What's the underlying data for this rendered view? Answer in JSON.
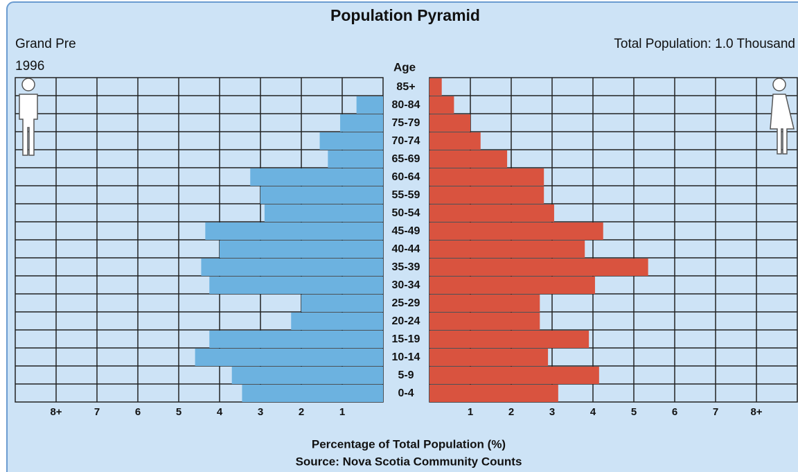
{
  "chart_data": {
    "type": "pyramid",
    "title": "Population Pyramid",
    "place": "Grand Pre",
    "year": "1996",
    "total": "Total Population: 1.0 Thousand",
    "category_label": "Age",
    "x_label": "Percentage of Total Population (%)",
    "source": "Source: Nova Scotia Community Counts",
    "categories": [
      "85+",
      "80-84",
      "75-79",
      "70-74",
      "65-69",
      "60-64",
      "55-59",
      "50-54",
      "45-49",
      "40-44",
      "35-39",
      "30-34",
      "25-29",
      "20-24",
      "15-19",
      "10-14",
      "5-9",
      "0-4"
    ],
    "series": [
      {
        "color": "#6cb2e0",
        "values": [
          0,
          0.65,
          1.05,
          1.55,
          1.35,
          3.25,
          3.0,
          2.9,
          4.35,
          4.0,
          4.45,
          4.25,
          2.0,
          2.25,
          4.25,
          4.6,
          3.7,
          3.45
        ]
      },
      {
        "color": "#d9533f",
        "values": [
          0.3,
          0.6,
          1.0,
          1.25,
          1.9,
          2.8,
          2.8,
          3.05,
          4.25,
          3.8,
          5.35,
          4.05,
          2.7,
          2.7,
          3.9,
          2.9,
          4.15,
          3.15
        ]
      }
    ],
    "xlim": [
      0,
      9
    ],
    "xticks": [
      1,
      2,
      3,
      4,
      5,
      6,
      7,
      {
        "value": 8,
        "label": "8+"
      }
    ],
    "grid": true
  }
}
